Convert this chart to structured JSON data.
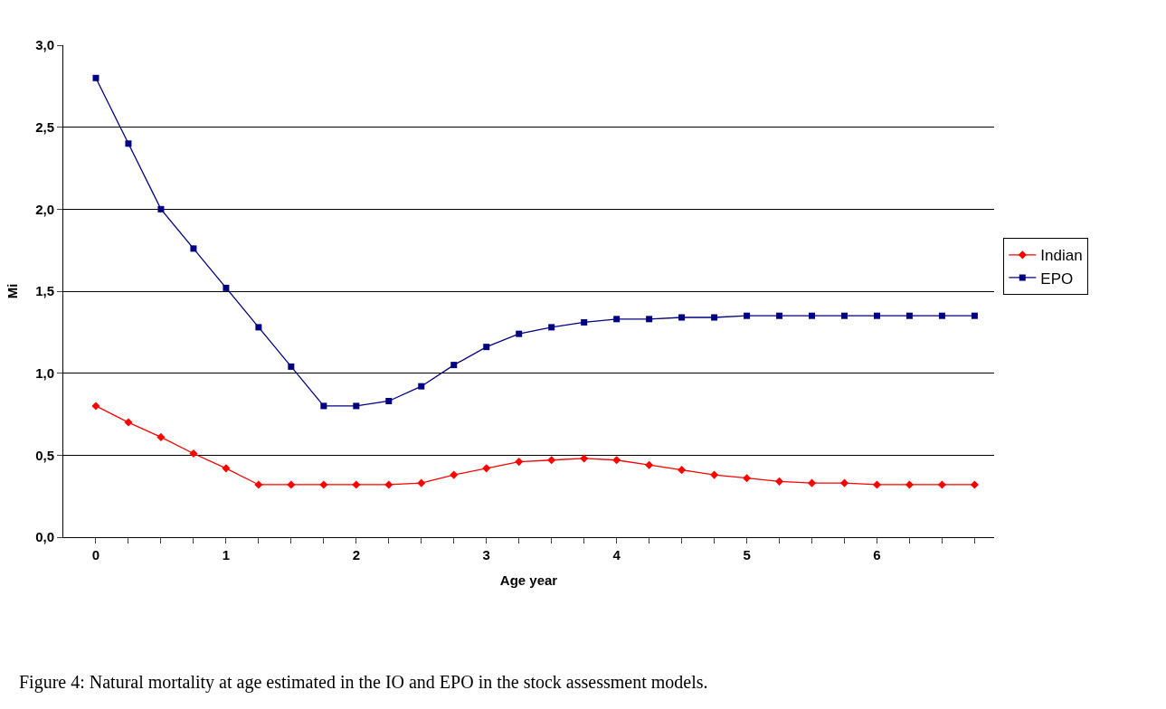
{
  "chart_data": {
    "type": "line",
    "xlabel": "Age year",
    "ylabel": "Mi",
    "x": [
      0,
      0.25,
      0.5,
      0.75,
      1,
      1.25,
      1.5,
      1.75,
      2,
      2.25,
      2.5,
      2.75,
      3,
      3.25,
      3.5,
      3.75,
      4,
      4.25,
      4.5,
      4.75,
      5,
      5.25,
      5.5,
      5.75,
      6,
      6.25,
      6.5,
      6.75
    ],
    "series": [
      {
        "name": "Indian",
        "color": "#ff0000",
        "marker": "diamond",
        "values": [
          0.8,
          0.7,
          0.61,
          0.51,
          0.42,
          0.32,
          0.32,
          0.32,
          0.32,
          0.32,
          0.33,
          0.38,
          0.42,
          0.46,
          0.47,
          0.48,
          0.47,
          0.44,
          0.41,
          0.38,
          0.36,
          0.34,
          0.33,
          0.33,
          0.32,
          0.32,
          0.32,
          0.32
        ]
      },
      {
        "name": "EPO",
        "color": "#000080",
        "marker": "square",
        "values": [
          2.8,
          2.4,
          2.0,
          1.76,
          1.52,
          1.28,
          1.04,
          0.8,
          0.8,
          0.83,
          0.92,
          1.05,
          1.16,
          1.24,
          1.28,
          1.31,
          1.33,
          1.33,
          1.34,
          1.34,
          1.35,
          1.35,
          1.35,
          1.35,
          1.35,
          1.35,
          1.35,
          1.35
        ]
      }
    ],
    "xlim": [
      -0.25,
      6.9
    ],
    "xticks": [
      0,
      {
        "value": 0.25,
        "label": null
      },
      {
        "value": 0.5,
        "label": null
      },
      {
        "value": 0.75,
        "label": null
      },
      1,
      {
        "value": 1.25,
        "label": null
      },
      {
        "value": 1.5,
        "label": null
      },
      {
        "value": 1.75,
        "label": null
      },
      2,
      {
        "value": 2.25,
        "label": null
      },
      {
        "value": 2.5,
        "label": null
      },
      {
        "value": 2.75,
        "label": null
      },
      3,
      {
        "value": 3.25,
        "label": null
      },
      {
        "value": 3.5,
        "label": null
      },
      {
        "value": 3.75,
        "label": null
      },
      4,
      {
        "value": 4.25,
        "label": null
      },
      {
        "value": 4.5,
        "label": null
      },
      {
        "value": 4.75,
        "label": null
      },
      5,
      {
        "value": 5.25,
        "label": null
      },
      {
        "value": 5.5,
        "label": null
      },
      {
        "value": 5.75,
        "label": null
      },
      6,
      {
        "value": 6.25,
        "label": null
      },
      {
        "value": 6.5,
        "label": null
      },
      {
        "value": 6.75,
        "label": null
      }
    ],
    "ylim": [
      0,
      3.0
    ],
    "yticks": [
      {
        "value": 0,
        "label": "0,0"
      },
      {
        "value": 0.5,
        "label": "0,5"
      },
      {
        "value": 1.0,
        "label": "1,0"
      },
      {
        "value": 1.5,
        "label": "1,5"
      },
      {
        "value": 2.0,
        "label": "2,0"
      },
      {
        "value": 2.5,
        "label": "2,5"
      },
      {
        "value": 3.0,
        "label": "3,0"
      }
    ],
    "grid": "y",
    "legend": "right",
    "line_style": "solid",
    "annotations": [
      "Figure 4: Natural mortality at age estimated in the IO and EPO in the stock assessment models."
    ]
  }
}
